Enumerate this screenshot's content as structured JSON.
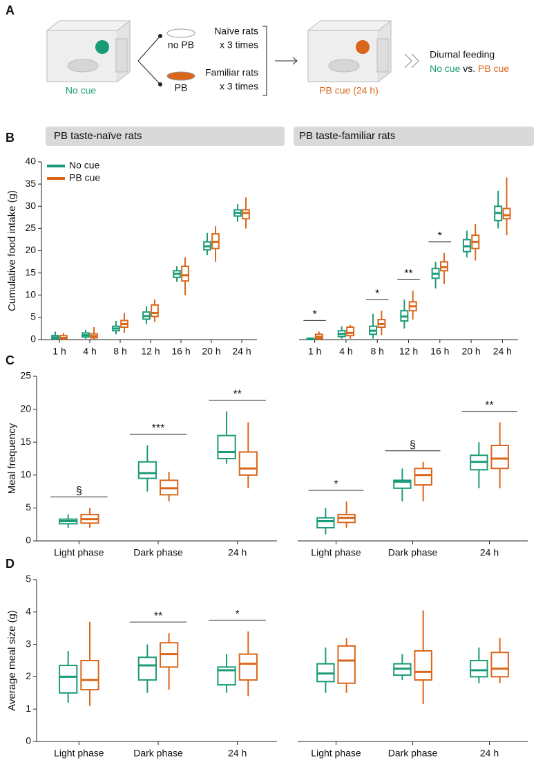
{
  "diagram": {
    "panel": "A",
    "left_cage_label": "No cue",
    "dish_no_pb": "no PB",
    "dish_pb": "PB",
    "group_1": "Naïve rats",
    "group_1_times": "x 3 times",
    "group_2": "Familiar rats",
    "group_2_times": "x 3 times",
    "right_cage_label": "PB cue (24 h)",
    "outcome": "Diurnal feeding",
    "outcome_a": "No cue",
    "outcome_vs": "vs.",
    "outcome_b": "PB cue"
  },
  "chart_data": [
    {
      "type": "box",
      "panel": "B",
      "title": "PB taste-naïve rats",
      "ylabel": "Cumulative food intake (g)",
      "legend": "upper left",
      "categories": [
        "1 h",
        "4 h",
        "8 h",
        "12 h",
        "16 h",
        "20 h",
        "24 h"
      ],
      "ylim": [
        0,
        40
      ],
      "yticks": [
        0,
        5,
        10,
        15,
        20,
        25,
        30,
        35,
        40
      ],
      "series": [
        {
          "name": "No cue",
          "color": "#1a9b78",
          "boxes": [
            [
              0,
              0.2,
              0.5,
              0.9,
              1.8
            ],
            [
              0.2,
              0.6,
              1.0,
              1.5,
              2.2
            ],
            [
              1.2,
              2.0,
              2.5,
              3.0,
              4.2
            ],
            [
              3.5,
              4.6,
              5.3,
              6.2,
              7.5
            ],
            [
              13,
              14,
              14.8,
              15.5,
              16.5
            ],
            [
              19,
              20.2,
              21,
              22,
              24
            ],
            [
              26.5,
              27.8,
              28.5,
              29.2,
              30.5
            ]
          ]
        },
        {
          "name": "PB cue",
          "color": "#d9661a",
          "boxes": [
            [
              0,
              0.2,
              0.4,
              0.9,
              1.5
            ],
            [
              0.1,
              0.4,
              0.8,
              1.3,
              2.8
            ],
            [
              1.5,
              2.8,
              3.5,
              4.3,
              6.0
            ],
            [
              4,
              5.2,
              6,
              7.8,
              9
            ],
            [
              10,
              13.2,
              14.5,
              16.5,
              18.5
            ],
            [
              17.5,
              20.5,
              22,
              23.8,
              25.5
            ],
            [
              25,
              27.2,
              28.5,
              29.2,
              32
            ]
          ]
        }
      ],
      "significance": []
    },
    {
      "type": "box",
      "title": "PB taste-familiar rats",
      "categories": [
        "1 h",
        "4 h",
        "8 h",
        "12 h",
        "16 h",
        "20 h",
        "24 h"
      ],
      "ylim": [
        0,
        40
      ],
      "series": [
        {
          "name": "No cue",
          "color": "#1a9b78",
          "boxes": [
            [
              0,
              0,
              0.1,
              0.3,
              0.5
            ],
            [
              0.2,
              0.7,
              1.3,
              2.0,
              3.0
            ],
            [
              0.2,
              1.2,
              2.0,
              3.0,
              5.8
            ],
            [
              2.5,
              4.2,
              5.2,
              6.5,
              9
            ],
            [
              11.5,
              13.8,
              14.8,
              16,
              17.5
            ],
            [
              18.5,
              19.8,
              21,
              22.5,
              24.5
            ],
            [
              25,
              26.8,
              28.5,
              30,
              33.5
            ]
          ]
        },
        {
          "name": "PB cue",
          "color": "#d9661a",
          "boxes": [
            [
              0,
              0.2,
              0.6,
              1.2,
              1.8
            ],
            [
              0.2,
              0.9,
              1.5,
              2.8,
              3.3
            ],
            [
              1,
              2.8,
              3.5,
              4.5,
              6.5
            ],
            [
              4.5,
              6.5,
              7.5,
              8.5,
              11
            ],
            [
              12.5,
              15.5,
              16.3,
              17.5,
              19.5
            ],
            [
              17.8,
              20.5,
              22,
              23.5,
              26
            ],
            [
              23.5,
              27.2,
              28,
              29.5,
              36.5
            ]
          ]
        }
      ],
      "significance": [
        {
          "category": "1 h",
          "label": "*"
        },
        {
          "category": "8 h",
          "label": "*"
        },
        {
          "category": "12 h",
          "label": "**"
        },
        {
          "category": "16 h",
          "label": "*"
        }
      ]
    },
    {
      "type": "box",
      "panel": "C",
      "ylabel": "Meal frequency",
      "categories": [
        "Light phase",
        "Dark phase",
        "24 h"
      ],
      "ylim": [
        0,
        25
      ],
      "yticks": [
        0,
        5,
        10,
        15,
        20,
        25
      ],
      "series": [
        {
          "name": "No cue",
          "color": "#1a9b78",
          "boxes": [
            [
              2,
              2.6,
              3,
              3.3,
              4
            ],
            [
              7.5,
              9.5,
              10.3,
              12,
              14.5
            ],
            [
              11.7,
              12.5,
              13.5,
              16,
              19.7
            ]
          ]
        },
        {
          "name": "PB cue",
          "color": "#d9661a",
          "boxes": [
            [
              2,
              2.7,
              3.3,
              4,
              5
            ],
            [
              6,
              7,
              8,
              9.2,
              10.5
            ],
            [
              8,
              10,
              11,
              13.5,
              18
            ]
          ]
        }
      ],
      "significance": [
        {
          "category": "Light phase",
          "label": "§"
        },
        {
          "category": "Dark phase",
          "label": "***"
        },
        {
          "category": "24 h",
          "label": "**"
        }
      ]
    },
    {
      "type": "box",
      "categories": [
        "Light phase",
        "Dark phase",
        "24 h"
      ],
      "ylim": [
        0,
        25
      ],
      "series": [
        {
          "name": "No cue",
          "color": "#1a9b78",
          "boxes": [
            [
              1,
              2,
              3,
              3.5,
              5
            ],
            [
              6,
              8,
              9,
              9.2,
              11
            ],
            [
              8,
              10.8,
              12,
              13,
              15
            ]
          ]
        },
        {
          "name": "PB cue",
          "color": "#d9661a",
          "boxes": [
            [
              2,
              2.8,
              3.5,
              4,
              6
            ],
            [
              6,
              8.5,
              10,
              11,
              12
            ],
            [
              8,
              11,
              12.5,
              14.5,
              18
            ]
          ]
        }
      ],
      "significance": [
        {
          "category": "Light phase",
          "label": "*"
        },
        {
          "category": "Dark phase",
          "label": "§"
        },
        {
          "category": "24 h",
          "label": "**"
        }
      ]
    },
    {
      "type": "box",
      "panel": "D",
      "ylabel": "Average meal size (g)",
      "categories": [
        "Light phase",
        "Dark phase",
        "24 h"
      ],
      "ylim": [
        0,
        5
      ],
      "yticks": [
        0,
        1,
        2,
        3,
        4,
        5
      ],
      "series": [
        {
          "name": "No cue",
          "color": "#1a9b78",
          "boxes": [
            [
              1.2,
              1.5,
              2,
              2.35,
              2.8
            ],
            [
              1.5,
              1.9,
              2.35,
              2.6,
              3
            ],
            [
              1.5,
              1.75,
              2.2,
              2.3,
              2.7
            ]
          ]
        },
        {
          "name": "PB cue",
          "color": "#d9661a",
          "boxes": [
            [
              1.1,
              1.6,
              1.9,
              2.5,
              3.7
            ],
            [
              1.6,
              2.3,
              2.7,
              3.05,
              3.35
            ],
            [
              1.4,
              1.9,
              2.4,
              2.7,
              3.4
            ]
          ]
        }
      ],
      "significance": [
        {
          "category": "Dark phase",
          "label": "**"
        },
        {
          "category": "24 h",
          "label": "*"
        }
      ]
    },
    {
      "type": "box",
      "categories": [
        "Light phase",
        "Dark phase",
        "24 h"
      ],
      "ylim": [
        0,
        5
      ],
      "series": [
        {
          "name": "No cue",
          "color": "#1a9b78",
          "boxes": [
            [
              1.5,
              1.85,
              2.1,
              2.4,
              2.9
            ],
            [
              1.9,
              2.05,
              2.25,
              2.4,
              2.7
            ],
            [
              1.8,
              2.0,
              2.2,
              2.5,
              2.9
            ]
          ]
        },
        {
          "name": "PB cue",
          "color": "#d9661a",
          "boxes": [
            [
              1.5,
              1.8,
              2.5,
              2.95,
              3.2
            ],
            [
              1.15,
              1.9,
              2.15,
              2.8,
              4.05
            ],
            [
              1.8,
              2,
              2.25,
              2.75,
              3.2
            ]
          ]
        }
      ],
      "significance": []
    }
  ]
}
